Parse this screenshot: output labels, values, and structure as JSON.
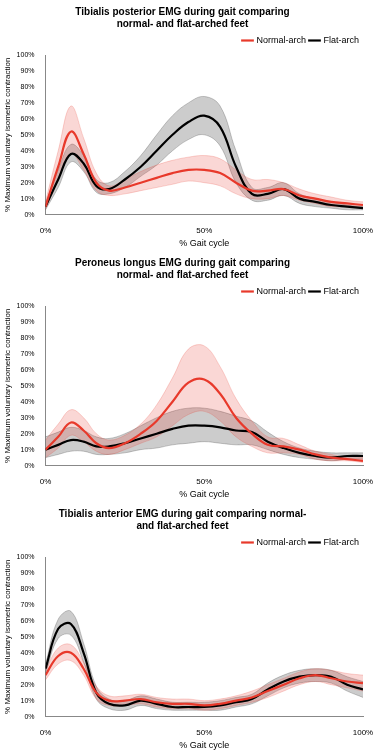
{
  "chart_data": [
    {
      "type": "line",
      "title": [
        "Tibialis posterior EMG during gait comparing",
        "normal- and flat-arched feet"
      ],
      "x_label": "% Gait cycle",
      "y_label": "% Maximum voluntary isometric contraction",
      "x": [
        0,
        4,
        8,
        12,
        16,
        20,
        25,
        30,
        35,
        40,
        45,
        50,
        55,
        60,
        65,
        70,
        75,
        80,
        85,
        90,
        95,
        100
      ],
      "series": [
        {
          "name": "Normal-arch",
          "color": "#e8392b",
          "values": [
            5,
            30,
            52,
            38,
            20,
            15,
            17,
            20,
            23,
            26,
            28,
            28,
            26,
            20,
            15,
            15,
            16,
            12,
            10,
            8,
            7,
            6
          ],
          "upper": [
            8,
            40,
            68,
            48,
            26,
            18,
            22,
            27,
            31,
            34,
            36,
            37,
            35,
            28,
            22,
            22,
            20,
            16,
            13,
            11,
            9,
            8
          ],
          "lower": [
            3,
            22,
            38,
            28,
            15,
            12,
            13,
            15,
            17,
            19,
            21,
            20,
            18,
            13,
            10,
            10,
            12,
            9,
            7,
            5,
            5,
            4
          ]
        },
        {
          "name": "Flat-arch",
          "color": "#000000",
          "values": [
            5,
            22,
            38,
            32,
            18,
            16,
            22,
            30,
            40,
            50,
            58,
            62,
            55,
            30,
            13,
            13,
            16,
            10,
            8,
            6,
            5,
            4
          ],
          "upper": [
            7,
            28,
            44,
            37,
            22,
            20,
            27,
            37,
            50,
            62,
            70,
            74,
            68,
            40,
            17,
            17,
            20,
            13,
            10,
            8,
            6,
            5
          ],
          "lower": [
            3,
            17,
            33,
            27,
            14,
            13,
            17,
            24,
            31,
            40,
            47,
            50,
            43,
            20,
            9,
            9,
            12,
            7,
            5,
            4,
            3,
            3
          ]
        }
      ],
      "xlim": [
        0,
        100
      ],
      "xticks": [
        {
          "value": 0,
          "label": "0%"
        },
        {
          "value": 50,
          "label": "50%"
        },
        {
          "value": 100,
          "label": "100%"
        }
      ],
      "ylim": [
        0,
        100
      ],
      "yticks": [
        {
          "value": 0,
          "label": "0%"
        },
        {
          "value": 10,
          "label": "10%"
        },
        {
          "value": 20,
          "label": "20%"
        },
        {
          "value": 30,
          "label": "30%"
        },
        {
          "value": 40,
          "label": "40%"
        },
        {
          "value": 50,
          "label": "50%"
        },
        {
          "value": 60,
          "label": "60%"
        },
        {
          "value": 70,
          "label": "70%"
        },
        {
          "value": 80,
          "label": "80%"
        },
        {
          "value": 90,
          "label": "90%"
        },
        {
          "value": 100,
          "label": "100%"
        }
      ],
      "grid": false,
      "legend": "top-right"
    },
    {
      "type": "line",
      "title": [
        "Peroneus longus EMG during gait comparing",
        "normal- and flat-arched feet"
      ],
      "x_label": "% Gait cycle",
      "y_label": "% Maximum voluntary isometric contraction",
      "x": [
        0,
        4,
        8,
        12,
        16,
        20,
        25,
        30,
        35,
        40,
        45,
        50,
        55,
        60,
        65,
        70,
        75,
        80,
        85,
        90,
        95,
        100
      ],
      "series": [
        {
          "name": "Normal-arch",
          "color": "#e8392b",
          "values": [
            10,
            18,
            27,
            22,
            14,
            11,
            14,
            20,
            28,
            40,
            52,
            54,
            45,
            30,
            20,
            13,
            12,
            10,
            7,
            5,
            4,
            3
          ],
          "upper": [
            16,
            26,
            35,
            30,
            20,
            16,
            19,
            26,
            38,
            55,
            73,
            75,
            62,
            42,
            28,
            18,
            17,
            13,
            9,
            7,
            5,
            5
          ],
          "lower": [
            5,
            11,
            19,
            15,
            9,
            7,
            10,
            14,
            18,
            25,
            32,
            34,
            28,
            18,
            12,
            8,
            8,
            7,
            4,
            3,
            3,
            2
          ]
        },
        {
          "name": "Flat-arch",
          "color": "#000000",
          "values": [
            10,
            13,
            16,
            15,
            12,
            12,
            14,
            17,
            20,
            23,
            25,
            25,
            24,
            22,
            21,
            15,
            11,
            8,
            6,
            5,
            6,
            6
          ],
          "upper": [
            18,
            21,
            24,
            22,
            18,
            17,
            20,
            25,
            30,
            34,
            36,
            36,
            34,
            31,
            28,
            21,
            15,
            11,
            9,
            8,
            8,
            8
          ],
          "lower": [
            5,
            7,
            9,
            9,
            7,
            7,
            8,
            10,
            11,
            13,
            14,
            15,
            14,
            13,
            13,
            10,
            7,
            5,
            4,
            3,
            4,
            4
          ]
        }
      ],
      "xlim": [
        0,
        100
      ],
      "xticks": [
        {
          "value": 0,
          "label": "0%"
        },
        {
          "value": 50,
          "label": "50%"
        },
        {
          "value": 100,
          "label": "100%"
        }
      ],
      "ylim": [
        0,
        100
      ],
      "yticks": [
        {
          "value": 0,
          "label": "0%"
        },
        {
          "value": 10,
          "label": "10%"
        },
        {
          "value": 20,
          "label": "20%"
        },
        {
          "value": 30,
          "label": "30%"
        },
        {
          "value": 40,
          "label": "40%"
        },
        {
          "value": 50,
          "label": "50%"
        },
        {
          "value": 60,
          "label": "60%"
        },
        {
          "value": 70,
          "label": "70%"
        },
        {
          "value": 80,
          "label": "80%"
        },
        {
          "value": 90,
          "label": "90%"
        },
        {
          "value": 100,
          "label": "100%"
        }
      ],
      "grid": false,
      "legend": "top-right"
    },
    {
      "type": "line",
      "title": [
        "Tibialis anterior EMG during gait comparing normal-",
        "and flat-arched feet"
      ],
      "x_label": "% Gait cycle",
      "y_label": "% Maximum voluntary isometric contraction",
      "x": [
        0,
        4,
        8,
        12,
        16,
        20,
        25,
        30,
        35,
        40,
        45,
        50,
        55,
        60,
        65,
        70,
        75,
        80,
        85,
        90,
        95,
        100
      ],
      "series": [
        {
          "name": "Normal-arch",
          "color": "#e8392b",
          "values": [
            26,
            38,
            40,
            30,
            15,
            10,
            10,
            11,
            9,
            8,
            8,
            7,
            8,
            10,
            12,
            16,
            20,
            24,
            26,
            24,
            22,
            21
          ],
          "upper": [
            29,
            43,
            45,
            34,
            19,
            13,
            13,
            14,
            12,
            11,
            11,
            10,
            11,
            13,
            16,
            20,
            24,
            28,
            30,
            29,
            27,
            26
          ],
          "lower": [
            23,
            33,
            35,
            26,
            11,
            7,
            7,
            8,
            6,
            5,
            5,
            4,
            5,
            7,
            9,
            12,
            16,
            20,
            22,
            20,
            18,
            16
          ]
        },
        {
          "name": "Flat-arch",
          "color": "#000000",
          "values": [
            30,
            55,
            58,
            40,
            15,
            8,
            7,
            10,
            8,
            6,
            6,
            6,
            7,
            9,
            11,
            17,
            22,
            25,
            26,
            25,
            20,
            17
          ],
          "upper": [
            33,
            61,
            66,
            46,
            19,
            11,
            10,
            13,
            11,
            9,
            9,
            9,
            10,
            12,
            14,
            21,
            26,
            29,
            30,
            29,
            25,
            22
          ],
          "lower": [
            27,
            49,
            51,
            34,
            11,
            5,
            4,
            7,
            5,
            4,
            4,
            4,
            4,
            6,
            8,
            13,
            18,
            21,
            22,
            21,
            16,
            12
          ]
        }
      ],
      "xlim": [
        0,
        100
      ],
      "xticks": [
        {
          "value": 0,
          "label": "0%"
        },
        {
          "value": 50,
          "label": "50%"
        },
        {
          "value": 100,
          "label": "100%"
        }
      ],
      "ylim": [
        0,
        100
      ],
      "yticks": [
        {
          "value": 0,
          "label": "0%"
        },
        {
          "value": 10,
          "label": "10%"
        },
        {
          "value": 20,
          "label": "20%"
        },
        {
          "value": 30,
          "label": "30%"
        },
        {
          "value": 40,
          "label": "40%"
        },
        {
          "value": 50,
          "label": "50%"
        },
        {
          "value": 60,
          "label": "60%"
        },
        {
          "value": 70,
          "label": "70%"
        },
        {
          "value": 80,
          "label": "80%"
        },
        {
          "value": 90,
          "label": "90%"
        },
        {
          "value": 100,
          "label": "100%"
        }
      ],
      "grid": false,
      "legend": "top-right"
    }
  ]
}
